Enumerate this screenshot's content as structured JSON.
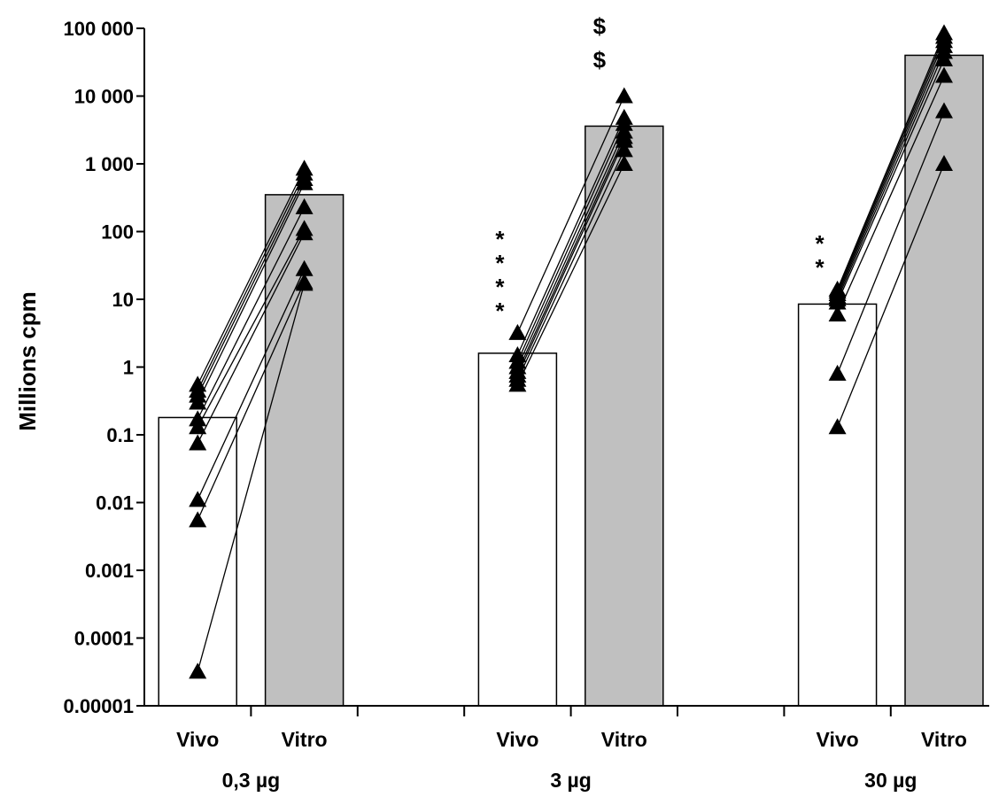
{
  "chart_data": {
    "type": "bar",
    "ylabel": "Millions cpm",
    "yscale": "log",
    "ylim": [
      1e-05,
      100000
    ],
    "yticks": [
      {
        "value": 1e-05,
        "label": "0.00001"
      },
      {
        "value": 0.0001,
        "label": "0.0001"
      },
      {
        "value": 0.001,
        "label": "0.001"
      },
      {
        "value": 0.01,
        "label": "0.01"
      },
      {
        "value": 0.1,
        "label": "0.1"
      },
      {
        "value": 1,
        "label": "1"
      },
      {
        "value": 10,
        "label": "10"
      },
      {
        "value": 100,
        "label": "100"
      },
      {
        "value": 1000,
        "label": "1 000"
      },
      {
        "value": 10000,
        "label": "10 000"
      },
      {
        "value": 100000,
        "label": "100 000"
      }
    ],
    "colors": {
      "vivo_bar": "#ffffff",
      "vitro_bar": "#c0c0c0",
      "marker": "#000000",
      "line": "#000000"
    },
    "groups": [
      {
        "label": "0,3 µg",
        "bars": [
          {
            "label": "Vivo",
            "value": 0.18
          },
          {
            "label": "Vitro",
            "value": 350
          }
        ],
        "pairs": [
          [
            0.55,
            850
          ],
          [
            0.45,
            720
          ],
          [
            0.38,
            600
          ],
          [
            0.3,
            520
          ],
          [
            0.17,
            230
          ],
          [
            0.13,
            110
          ],
          [
            0.075,
            95
          ],
          [
            0.011,
            28
          ],
          [
            0.0055,
            18
          ],
          [
            3.2e-05,
            17
          ]
        ],
        "annotations": {
          "vivo": "",
          "vitro": ""
        }
      },
      {
        "label": "3 µg",
        "bars": [
          {
            "label": "Vivo",
            "value": 1.6
          },
          {
            "label": "Vitro",
            "value": 3600
          }
        ],
        "pairs": [
          [
            3.2,
            10000
          ],
          [
            1.5,
            4800
          ],
          [
            1.2,
            3900
          ],
          [
            1.0,
            3000
          ],
          [
            0.85,
            2500
          ],
          [
            0.75,
            2200
          ],
          [
            0.65,
            1600
          ],
          [
            0.55,
            1000
          ]
        ],
        "annotations": {
          "vivo": "****",
          "vitro": "$$"
        }
      },
      {
        "label": "30 µg",
        "bars": [
          {
            "label": "Vivo",
            "value": 8.5
          },
          {
            "label": "Vitro",
            "value": 40000
          }
        ],
        "pairs": [
          [
            14,
            85000
          ],
          [
            13,
            75000
          ],
          [
            12,
            65000
          ],
          [
            11,
            55000
          ],
          [
            10,
            45000
          ],
          [
            9,
            35000
          ],
          [
            6,
            20000
          ],
          [
            0.8,
            6000
          ],
          [
            0.13,
            1000
          ]
        ],
        "annotations": {
          "vivo": "**",
          "vitro": ""
        }
      }
    ]
  }
}
